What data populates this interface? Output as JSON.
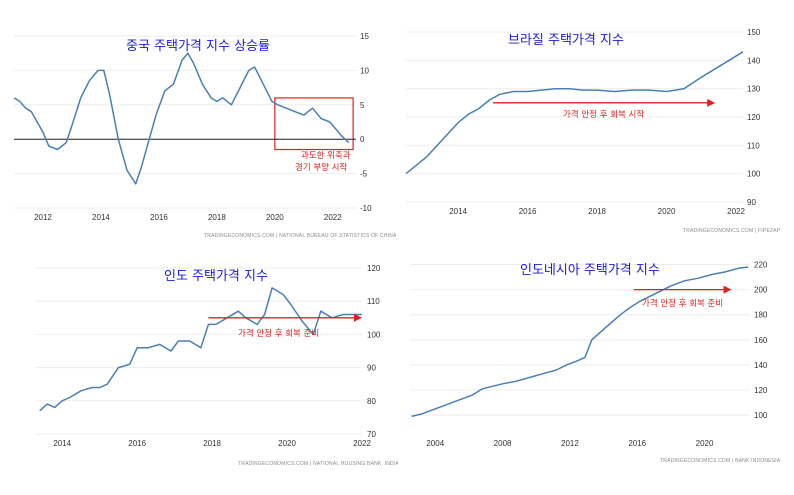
{
  "chart_data": [
    {
      "type": "line",
      "title": "중국 주택가격 지수 상승률",
      "source": "TRADINGECONOMICS.COM  |  NATIONAL BUREAU OF STATISTICS OF CHINA",
      "xlim": [
        2011,
        2022.8
      ],
      "ylim": [
        -10,
        15
      ],
      "x_ticks": [
        "2012",
        "2014",
        "2016",
        "2018",
        "2020",
        "2022"
      ],
      "y_ticks": [
        "15",
        "10",
        "5",
        "0",
        "-5",
        "-10"
      ],
      "zero_line": true,
      "series": [
        {
          "x": [
            2011.0,
            2011.2,
            2011.4,
            2011.6,
            2011.8,
            2012.0,
            2012.2,
            2012.5,
            2012.8,
            2013.0,
            2013.3,
            2013.6,
            2013.9,
            2014.1,
            2014.3,
            2014.6,
            2014.9,
            2015.2,
            2015.4,
            2015.6,
            2015.9,
            2016.2,
            2016.5,
            2016.8,
            2017.0,
            2017.2,
            2017.5,
            2017.8,
            2018.0,
            2018.2,
            2018.5,
            2018.8,
            2019.1,
            2019.3,
            2019.6,
            2019.9,
            2020.1,
            2020.4,
            2020.7,
            2021.0,
            2021.3,
            2021.6,
            2021.9,
            2022.1,
            2022.3,
            2022.55
          ],
          "values": [
            6,
            5.5,
            4.5,
            4,
            2.5,
            1,
            -1,
            -1.5,
            -0.5,
            2,
            6,
            8.5,
            10,
            10,
            6.5,
            0,
            -4.5,
            -6.5,
            -4,
            -1,
            3.5,
            7,
            8,
            11.5,
            12.5,
            11,
            8,
            6,
            5.5,
            6,
            5,
            7.5,
            10,
            10.5,
            8,
            5.5,
            5,
            4.5,
            4,
            3.5,
            4.5,
            3,
            2.5,
            1.5,
            0.5,
            -0.5
          ]
        }
      ],
      "annotation": {
        "text": [
          "과도한 위축과",
          "경기 부양 시작"
        ],
        "box_x": [
          2020.0,
          2022.7
        ],
        "box_y": [
          -1.5,
          6
        ]
      }
    },
    {
      "type": "line",
      "title": "브라질 주택가격 지수",
      "source": "TRADINGECONOMICS.COM  |  FIPEZAP",
      "xlim": [
        2012.5,
        2022.2
      ],
      "ylim": [
        90,
        150
      ],
      "x_ticks": [
        "2014",
        "2016",
        "2018",
        "2020",
        "2022"
      ],
      "y_ticks": [
        "150",
        "140",
        "130",
        "120",
        "110",
        "100",
        "90"
      ],
      "series": [
        {
          "x": [
            2012.5,
            2012.8,
            2013.1,
            2013.4,
            2013.7,
            2014.0,
            2014.3,
            2014.6,
            2014.9,
            2015.2,
            2015.6,
            2016.0,
            2016.4,
            2016.8,
            2017.2,
            2017.6,
            2018.0,
            2018.5,
            2019.0,
            2019.5,
            2020.0,
            2020.5,
            2021.0,
            2021.4,
            2021.8,
            2022.2
          ],
          "values": [
            100,
            103,
            106,
            110,
            114,
            118,
            121,
            123,
            126,
            128,
            129,
            129,
            129.5,
            130,
            130,
            129.5,
            129.5,
            129,
            129.5,
            129.5,
            129,
            130,
            134,
            137,
            140,
            143
          ]
        }
      ],
      "annotation": {
        "text": [
          "가격 안정 후 회복 시작"
        ],
        "arrow_x": [
          2015.0,
          2021.4
        ],
        "arrow_y": 125
      }
    },
    {
      "type": "line",
      "title": "인도 주택가격 지수",
      "source": "TRADINGECONOMICS.COM  |  NATIONAL HOUSING BANK, INDIA",
      "xlim": [
        2013.3,
        2022.0
      ],
      "ylim": [
        70,
        120
      ],
      "x_ticks": [
        "2014",
        "2016",
        "2018",
        "2020",
        "2022"
      ],
      "y_ticks": [
        "120",
        "110",
        "100",
        "90",
        "80",
        "70"
      ],
      "series": [
        {
          "x": [
            2013.4,
            2013.6,
            2013.8,
            2014.0,
            2014.2,
            2014.5,
            2014.8,
            2015.0,
            2015.2,
            2015.5,
            2015.8,
            2016.0,
            2016.3,
            2016.6,
            2016.9,
            2017.1,
            2017.4,
            2017.7,
            2017.9,
            2018.1,
            2018.4,
            2018.7,
            2018.9,
            2019.2,
            2019.4,
            2019.6,
            2019.9,
            2020.1,
            2020.4,
            2020.7,
            2020.9,
            2021.2,
            2021.5,
            2021.8,
            2022.0
          ],
          "values": [
            77,
            79,
            78,
            80,
            81,
            83,
            84,
            84,
            85,
            90,
            91,
            96,
            96,
            97,
            95,
            98,
            98,
            96,
            103,
            103,
            105,
            107,
            105,
            103,
            106,
            114,
            112,
            109,
            104,
            100,
            107,
            105,
            106,
            106,
            106
          ]
        }
      ],
      "annotation": {
        "text": [
          "가격 안정 후 회복 준비"
        ],
        "arrow_x": [
          2017.9,
          2022.0
        ],
        "arrow_y": 105
      }
    },
    {
      "type": "line",
      "title": "인도네시아 주택가격 지수",
      "source": "TRADINGECONOMICS.COM  |  BANK INDONESIA",
      "xlim": [
        2002.5,
        2022.7
      ],
      "ylim": [
        85,
        222
      ],
      "x_ticks": [
        "2004",
        "2008",
        "2012",
        "2016",
        "2020"
      ],
      "y_ticks": [
        "220",
        "200",
        "180",
        "160",
        "140",
        "120",
        "100"
      ],
      "series": [
        {
          "x": [
            2002.6,
            2003.2,
            2003.8,
            2004.4,
            2005.0,
            2005.6,
            2006.2,
            2006.8,
            2007.4,
            2008.0,
            2008.8,
            2009.6,
            2010.4,
            2011.2,
            2011.8,
            2012.4,
            2012.9,
            2013.3,
            2013.8,
            2014.4,
            2015.0,
            2015.6,
            2016.2,
            2016.8,
            2017.4,
            2018.0,
            2018.8,
            2019.6,
            2020.4,
            2021.2,
            2022.0,
            2022.6
          ],
          "values": [
            99,
            101,
            104,
            107,
            110,
            113,
            116,
            121,
            123,
            125,
            127,
            130,
            133,
            136,
            140,
            143,
            146,
            160,
            166,
            173,
            180,
            186,
            191,
            195,
            199,
            203,
            207,
            209,
            212,
            214,
            217,
            218
          ]
        }
      ],
      "annotation": {
        "text": [
          "가격 안정 후 회복 준비"
        ],
        "arrow_x": [
          2015.8,
          2021.6
        ],
        "arrow_y": 200
      }
    }
  ]
}
